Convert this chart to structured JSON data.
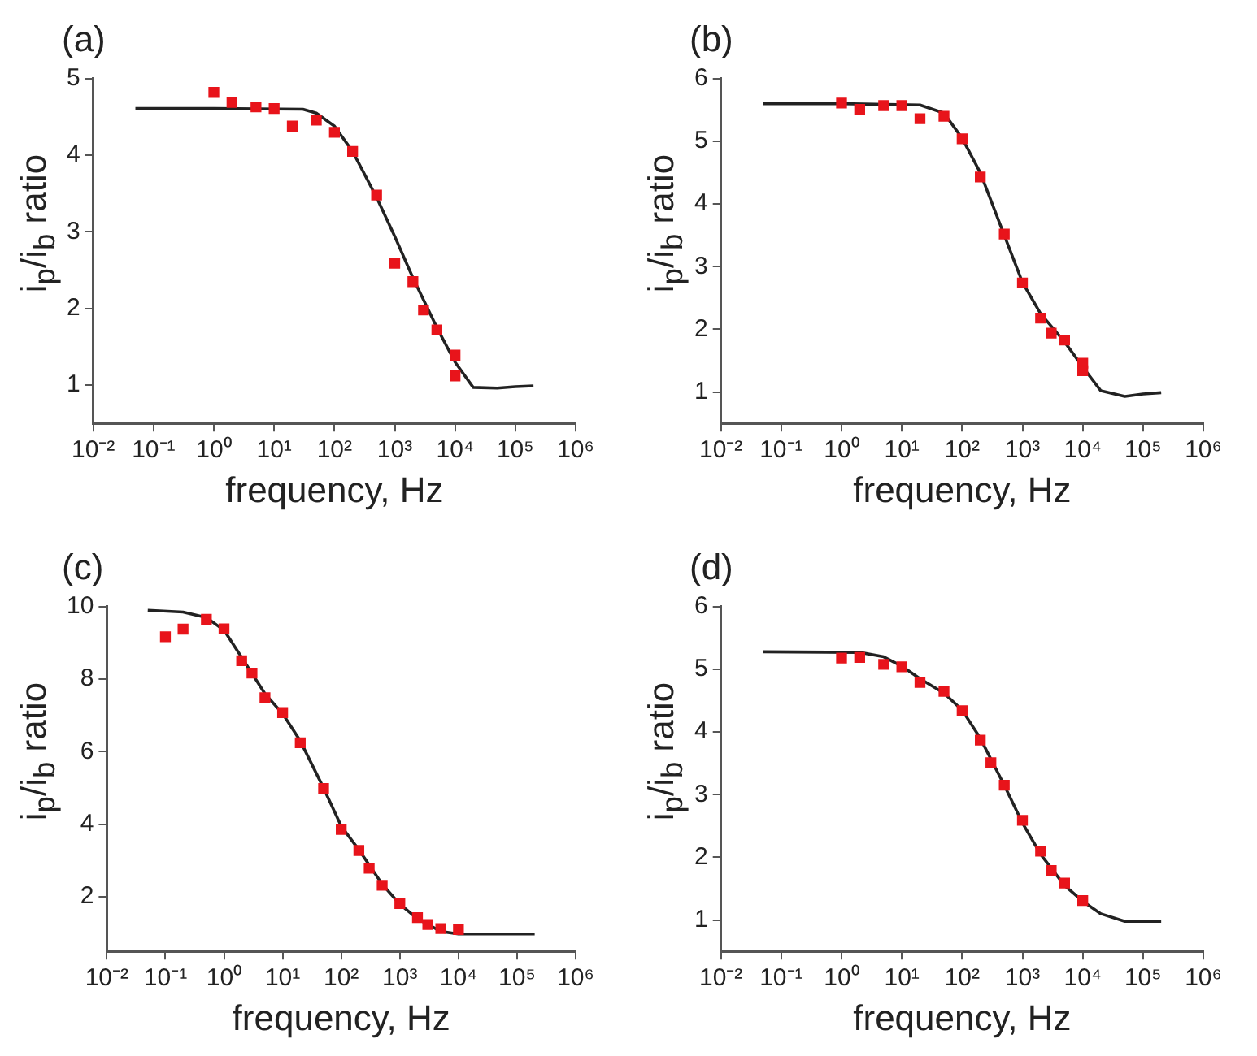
{
  "chart_data": [
    {
      "type": "scatter",
      "title": "(a)",
      "xlabel": "frequency, Hz",
      "ylabel": "i$_{p}$/i$_{b}$ ratio",
      "log": "x",
      "grid": false,
      "legend": false,
      "xlim": [
        0.01,
        1000000
      ],
      "xticks": [
        {
          "value": 0.01,
          "label": "10⁻²"
        },
        {
          "value": 0.1,
          "label": "10⁻¹"
        },
        {
          "value": 1,
          "label": "10⁰"
        },
        {
          "value": 10,
          "label": "10¹"
        },
        {
          "value": 100,
          "label": "10²"
        },
        {
          "value": 1000,
          "label": "10³"
        },
        {
          "value": 10000,
          "label": "10⁴"
        },
        {
          "value": 100000,
          "label": "10⁵"
        },
        {
          "value": 1000000,
          "label": "10⁶"
        }
      ],
      "ylim": [
        0.5,
        5
      ],
      "yticks": [
        1,
        2,
        3,
        4,
        5
      ],
      "series": [
        {
          "marker": "square",
          "color": "#e8141b",
          "x": [
            1,
            2,
            5,
            10,
            20,
            50,
            100,
            200,
            500,
            1000,
            2000,
            3000,
            5000,
            10000,
            10000
          ],
          "values": [
            4.82,
            4.69,
            4.63,
            4.61,
            4.38,
            4.46,
            4.3,
            4.05,
            3.48,
            2.59,
            2.35,
            1.98,
            1.72,
            1.39,
            1.12
          ]
        },
        {
          "type": "line",
          "marker": "none",
          "line_style": "solid",
          "color": "#222222",
          "x": [
            0.05,
            1,
            30,
            50,
            100,
            200,
            500,
            1000,
            2000,
            5000,
            10000,
            20000,
            50000,
            100000,
            200000
          ],
          "values": [
            4.61,
            4.61,
            4.6,
            4.55,
            4.38,
            4.05,
            3.45,
            2.94,
            2.4,
            1.75,
            1.3,
            0.97,
            0.96,
            0.98,
            0.99
          ]
        }
      ]
    },
    {
      "type": "scatter",
      "title": "(b)",
      "xlabel": "frequency, Hz",
      "ylabel": "i$_{p}$/i$_{b}$ ratio",
      "log": "x",
      "grid": false,
      "legend": false,
      "xlim": [
        0.01,
        1000000
      ],
      "xticks": [
        {
          "value": 0.01,
          "label": "10⁻²"
        },
        {
          "value": 0.1,
          "label": "10⁻¹"
        },
        {
          "value": 1,
          "label": "10⁰"
        },
        {
          "value": 10,
          "label": "10¹"
        },
        {
          "value": 100,
          "label": "10²"
        },
        {
          "value": 1000,
          "label": "10³"
        },
        {
          "value": 10000,
          "label": "10⁴"
        },
        {
          "value": 100000,
          "label": "10⁵"
        },
        {
          "value": 1000000,
          "label": "10⁶"
        }
      ],
      "ylim": [
        0.5,
        6
      ],
      "yticks": [
        1,
        2,
        3,
        4,
        5,
        6
      ],
      "series": [
        {
          "marker": "square",
          "color": "#e8141b",
          "x": [
            1,
            2,
            5,
            10,
            20,
            50,
            100,
            200,
            500,
            1000,
            2000,
            3000,
            5000,
            10000,
            10000
          ],
          "values": [
            5.61,
            5.51,
            5.57,
            5.57,
            5.36,
            5.4,
            5.04,
            4.43,
            3.52,
            2.74,
            2.18,
            1.94,
            1.83,
            1.46,
            1.34
          ]
        },
        {
          "type": "line",
          "marker": "none",
          "line_style": "solid",
          "color": "#222222",
          "x": [
            0.05,
            1,
            20,
            50,
            100,
            200,
            500,
            1000,
            2000,
            5000,
            10000,
            20000,
            50000,
            100000,
            200000
          ],
          "values": [
            5.6,
            5.6,
            5.58,
            5.45,
            5.05,
            4.5,
            3.5,
            2.75,
            2.25,
            1.8,
            1.4,
            1.02,
            0.93,
            0.97,
            0.99
          ]
        }
      ]
    },
    {
      "type": "scatter",
      "title": "(c)",
      "xlabel": "frequency, Hz",
      "ylabel": "i$_{p}$/i$_{b}$ ratio",
      "log": "x",
      "grid": false,
      "legend": false,
      "xlim": [
        0.01,
        1000000
      ],
      "xticks": [
        {
          "value": 0.01,
          "label": "10⁻²"
        },
        {
          "value": 0.1,
          "label": "10⁻¹"
        },
        {
          "value": 1,
          "label": "10⁰"
        },
        {
          "value": 10,
          "label": "10¹"
        },
        {
          "value": 100,
          "label": "10²"
        },
        {
          "value": 1000,
          "label": "10³"
        },
        {
          "value": 10000,
          "label": "10⁴"
        },
        {
          "value": 100000,
          "label": "10⁵"
        },
        {
          "value": 1000000,
          "label": "10⁶"
        }
      ],
      "ylim": [
        0.5,
        10
      ],
      "yticks": [
        2,
        4,
        6,
        8,
        10
      ],
      "series": [
        {
          "marker": "square",
          "color": "#e8141b",
          "x": [
            0.1,
            0.2,
            0.5,
            1,
            2,
            3,
            5,
            10,
            20,
            50,
            100,
            200,
            300,
            500,
            1000,
            2000,
            3000,
            5000,
            10000
          ],
          "values": [
            9.17,
            9.38,
            9.65,
            9.39,
            8.51,
            8.17,
            7.49,
            7.08,
            6.25,
            4.99,
            3.86,
            3.28,
            2.79,
            2.32,
            1.82,
            1.43,
            1.24,
            1.13,
            1.1
          ]
        },
        {
          "type": "line",
          "marker": "none",
          "line_style": "solid",
          "color": "#222222",
          "x": [
            0.05,
            0.2,
            0.5,
            1,
            2,
            5,
            10,
            20,
            50,
            100,
            200,
            500,
            1000,
            2000,
            5000,
            10000,
            200000
          ],
          "values": [
            9.9,
            9.85,
            9.7,
            9.35,
            8.6,
            7.6,
            7.05,
            6.3,
            5.0,
            3.95,
            3.3,
            2.35,
            1.8,
            1.4,
            1.05,
            0.98,
            0.98
          ]
        }
      ]
    },
    {
      "type": "scatter",
      "title": "(d)",
      "xlabel": "frequency, Hz",
      "ylabel": "i$_{p}$/i$_{b}$ ratio",
      "log": "x",
      "grid": false,
      "legend": false,
      "xlim": [
        0.01,
        1000000
      ],
      "xticks": [
        {
          "value": 0.01,
          "label": "10⁻²"
        },
        {
          "value": 0.1,
          "label": "10⁻¹"
        },
        {
          "value": 1,
          "label": "10⁰"
        },
        {
          "value": 10,
          "label": "10¹"
        },
        {
          "value": 100,
          "label": "10²"
        },
        {
          "value": 1000,
          "label": "10³"
        },
        {
          "value": 10000,
          "label": "10⁴"
        },
        {
          "value": 100000,
          "label": "10⁵"
        },
        {
          "value": 1000000,
          "label": "10⁶"
        }
      ],
      "ylim": [
        0.5,
        6
      ],
      "yticks": [
        1,
        2,
        3,
        4,
        5,
        6
      ],
      "series": [
        {
          "marker": "square",
          "color": "#e8141b",
          "x": [
            1,
            2,
            5,
            10,
            20,
            50,
            100,
            200,
            300,
            500,
            1000,
            2000,
            3000,
            5000,
            10000
          ],
          "values": [
            5.18,
            5.19,
            5.08,
            5.04,
            4.79,
            4.65,
            4.34,
            3.87,
            3.51,
            3.15,
            2.59,
            2.1,
            1.79,
            1.59,
            1.31
          ]
        },
        {
          "type": "line",
          "marker": "none",
          "line_style": "solid",
          "color": "#222222",
          "x": [
            0.05,
            2,
            5,
            10,
            20,
            50,
            100,
            200,
            500,
            1000,
            2000,
            5000,
            10000,
            20000,
            50000,
            200000
          ],
          "values": [
            5.28,
            5.27,
            5.2,
            5.05,
            4.85,
            4.62,
            4.35,
            3.9,
            3.15,
            2.55,
            2.05,
            1.55,
            1.3,
            1.1,
            0.98,
            0.98
          ]
        }
      ]
    }
  ]
}
